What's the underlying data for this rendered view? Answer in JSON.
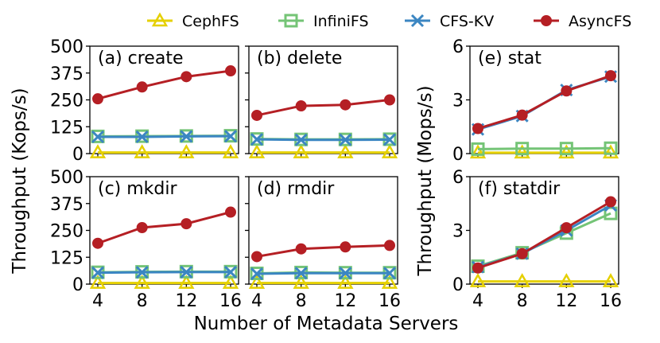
{
  "x_values": [
    4,
    8,
    12,
    16
  ],
  "shared_x_label": "Number of Metadata Servers",
  "legend": [
    {
      "name": "CephFS",
      "color": "#e5d000",
      "marker": "triangle"
    },
    {
      "name": "InfiniFS",
      "color": "#74c476",
      "marker": "square"
    },
    {
      "name": "CFS-KV",
      "color": "#3b86c2",
      "marker": "x"
    },
    {
      "name": "AsyncFS",
      "color": "#b51f24",
      "marker": "circle"
    }
  ],
  "chart_data": [
    {
      "type": "line",
      "title": "(a) create",
      "ylabel": "Throughput (Kops/s)",
      "ylim": [
        0,
        500
      ],
      "yticks": [
        0,
        125,
        250,
        375,
        500
      ],
      "x": [
        4,
        8,
        12,
        16
      ],
      "series": [
        {
          "name": "CephFS",
          "values": [
            5,
            5,
            5,
            5
          ]
        },
        {
          "name": "InfiniFS",
          "values": [
            80,
            81,
            82,
            83
          ]
        },
        {
          "name": "CFS-KV",
          "values": [
            78,
            78,
            80,
            81
          ]
        },
        {
          "name": "AsyncFS",
          "values": [
            255,
            310,
            358,
            385
          ]
        }
      ]
    },
    {
      "type": "line",
      "title": "(b) delete",
      "ylim": [
        0,
        500
      ],
      "yticks": [
        0,
        125,
        250,
        375,
        500
      ],
      "x": [
        4,
        8,
        12,
        16
      ],
      "series": [
        {
          "name": "CephFS",
          "values": [
            5,
            5,
            5,
            5
          ]
        },
        {
          "name": "InfiniFS",
          "values": [
            68,
            66,
            66,
            67
          ]
        },
        {
          "name": "CFS-KV",
          "values": [
            66,
            64,
            64,
            65
          ]
        },
        {
          "name": "AsyncFS",
          "values": [
            178,
            222,
            227,
            250
          ]
        }
      ]
    },
    {
      "type": "line",
      "title": "(c) mkdir",
      "ylabel": "Throughput (Kops/s)",
      "ylim": [
        0,
        500
      ],
      "yticks": [
        0,
        125,
        250,
        375,
        500
      ],
      "x": [
        4,
        8,
        12,
        16
      ],
      "series": [
        {
          "name": "CephFS",
          "values": [
            5,
            5,
            5,
            5
          ]
        },
        {
          "name": "InfiniFS",
          "values": [
            55,
            57,
            58,
            58
          ]
        },
        {
          "name": "CFS-KV",
          "values": [
            53,
            55,
            56,
            56
          ]
        },
        {
          "name": "AsyncFS",
          "values": [
            190,
            263,
            281,
            335
          ]
        }
      ]
    },
    {
      "type": "line",
      "title": "(d) rmdir",
      "ylim": [
        0,
        500
      ],
      "yticks": [
        0,
        125,
        250,
        375,
        500
      ],
      "x": [
        4,
        8,
        12,
        16
      ],
      "series": [
        {
          "name": "CephFS",
          "values": [
            5,
            5,
            5,
            5
          ]
        },
        {
          "name": "InfiniFS",
          "values": [
            50,
            54,
            53,
            53
          ]
        },
        {
          "name": "CFS-KV",
          "values": [
            48,
            51,
            51,
            51
          ]
        },
        {
          "name": "AsyncFS",
          "values": [
            128,
            164,
            173,
            180
          ]
        }
      ]
    },
    {
      "type": "line",
      "title": "(e) stat",
      "ylabel": "Throughput (Mops/s)",
      "ylim": [
        0,
        6
      ],
      "yticks": [
        0,
        3,
        6
      ],
      "x": [
        4,
        8,
        12,
        16
      ],
      "series": [
        {
          "name": "CephFS",
          "values": [
            0.05,
            0.05,
            0.05,
            0.05
          ]
        },
        {
          "name": "InfiniFS",
          "values": [
            0.25,
            0.28,
            0.28,
            0.3
          ]
        },
        {
          "name": "CFS-KV",
          "values": [
            1.35,
            2.1,
            3.55,
            4.3
          ]
        },
        {
          "name": "AsyncFS",
          "values": [
            1.4,
            2.15,
            3.5,
            4.35
          ]
        }
      ]
    },
    {
      "type": "line",
      "title": "(f) statdir",
      "ylim": [
        0,
        6
      ],
      "yticks": [
        0,
        3,
        6
      ],
      "x": [
        4,
        8,
        12,
        16
      ],
      "series": [
        {
          "name": "CephFS",
          "values": [
            0.15,
            0.15,
            0.15,
            0.15
          ]
        },
        {
          "name": "InfiniFS",
          "values": [
            1.0,
            1.75,
            2.85,
            3.95
          ]
        },
        {
          "name": "CFS-KV",
          "values": [
            0.95,
            1.7,
            3.0,
            4.4
          ]
        },
        {
          "name": "AsyncFS",
          "values": [
            0.9,
            1.7,
            3.15,
            4.6
          ]
        }
      ]
    }
  ]
}
